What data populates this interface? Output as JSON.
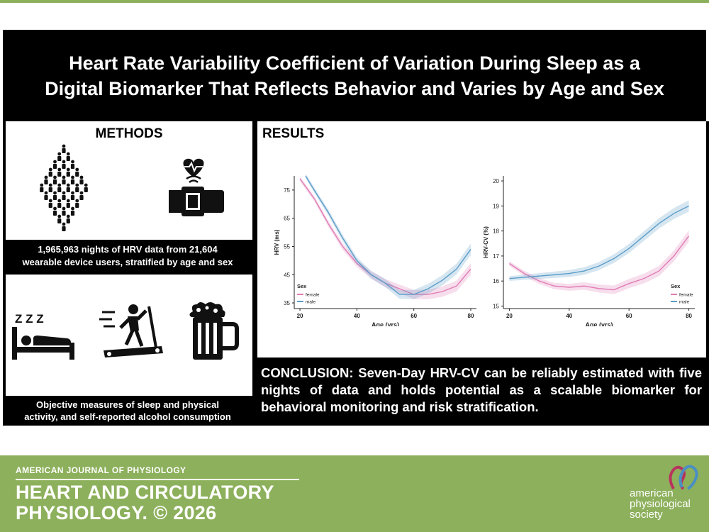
{
  "title": {
    "line1": "Heart Rate Variability Coefficient of Variation During Sleep as a",
    "line2": "Digital Biomarker That Reflects Behavior and Varies by Age and Sex"
  },
  "methods": {
    "heading": "METHODS",
    "caption1_line1": "1,965,963 nights of HRV data from 21,604",
    "caption1_line2": "wearable device users, stratified by age and sex",
    "caption2_line1": "Objective measures of sleep and physical",
    "caption2_line2": "activity, and self-reported alcohol consumption",
    "icons": [
      "people-crowd-icon",
      "smartwatch-heart-icon",
      "sleep-bed-icon",
      "treadmill-icon",
      "beer-mug-icon"
    ],
    "sleep_letters": "Z Z Z"
  },
  "results": {
    "heading": "RESULTS"
  },
  "conclusion": {
    "text": "CONCLUSION: Seven-Day HRV-CV can be reliably estimated with five nights of data and holds potential as a scalable biomarker for behavioral monitoring and risk stratification."
  },
  "colors": {
    "female": "#e07bb5",
    "male": "#5b9dc9",
    "footer": "#8db05c"
  },
  "chart_data": [
    {
      "type": "line",
      "xlabel": "Age (yrs)",
      "ylabel": "HRV (ms)",
      "xlim": [
        18,
        82
      ],
      "ylim": [
        33,
        80
      ],
      "xticks": [
        20,
        40,
        60,
        80
      ],
      "yticks": [
        35,
        45,
        55,
        65,
        75
      ],
      "legend": {
        "title": "Sex",
        "position": "bottom-left",
        "entries": [
          "female",
          "male"
        ]
      },
      "series": [
        {
          "name": "female",
          "x": [
            20,
            25,
            30,
            35,
            40,
            45,
            50,
            55,
            60,
            65,
            70,
            75,
            80
          ],
          "y": [
            79,
            72,
            63,
            55,
            49,
            45,
            42,
            40,
            38,
            38,
            39,
            41,
            47
          ]
        },
        {
          "name": "male",
          "x": [
            22,
            25,
            30,
            35,
            40,
            45,
            50,
            55,
            60,
            65,
            70,
            75,
            80
          ],
          "y": [
            80,
            75,
            67,
            58,
            50,
            45,
            42,
            38,
            38,
            40,
            43,
            47,
            54
          ]
        }
      ]
    },
    {
      "type": "line",
      "xlabel": "Age (yrs)",
      "ylabel": "HRV-CV (%)",
      "xlim": [
        18,
        82
      ],
      "ylim": [
        14.9,
        20.2
      ],
      "xticks": [
        20,
        40,
        60,
        80
      ],
      "yticks": [
        15,
        16,
        17,
        18,
        19,
        20
      ],
      "legend": {
        "title": "Sex",
        "position": "bottom-right",
        "entries": [
          "female",
          "male"
        ]
      },
      "series": [
        {
          "name": "female",
          "x": [
            20,
            25,
            30,
            35,
            40,
            45,
            50,
            55,
            60,
            65,
            70,
            75,
            80
          ],
          "y": [
            16.7,
            16.3,
            16.0,
            15.8,
            15.75,
            15.8,
            15.7,
            15.65,
            15.9,
            16.1,
            16.4,
            17.0,
            17.8
          ]
        },
        {
          "name": "male",
          "x": [
            20,
            25,
            30,
            35,
            40,
            45,
            50,
            55,
            60,
            65,
            70,
            75,
            80
          ],
          "y": [
            16.1,
            16.15,
            16.2,
            16.25,
            16.3,
            16.4,
            16.6,
            16.9,
            17.3,
            17.8,
            18.3,
            18.7,
            19.0
          ]
        }
      ]
    }
  ],
  "footer": {
    "journal_small": "AMERICAN JOURNAL OF PHYSIOLOGY",
    "journal_line1": "HEART AND CIRCULATORY",
    "journal_line2": "PHYSIOLOGY. © 2026",
    "society_line1": "american",
    "society_line2": "physiological",
    "society_line3": "society"
  }
}
